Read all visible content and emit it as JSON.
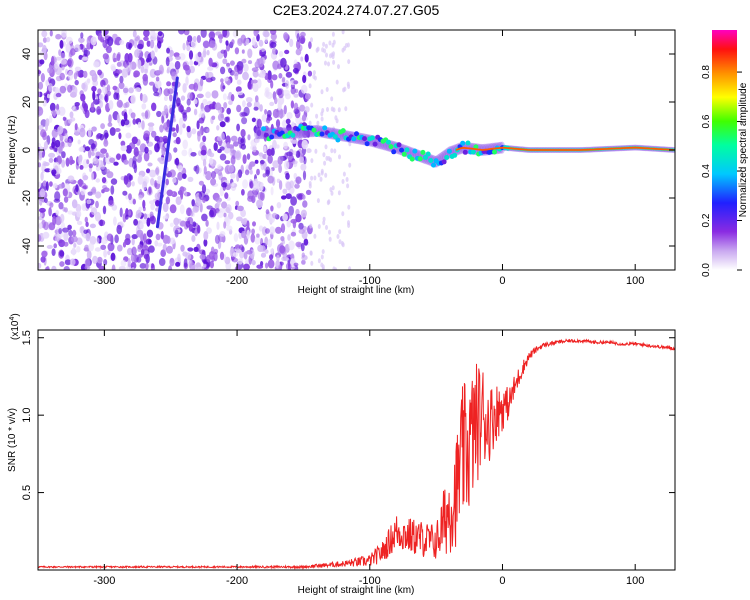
{
  "title": "C2E3.2024.274.07.27.G05",
  "chart_data": [
    {
      "type": "heatmap",
      "xlabel": "Height of straight line (km)",
      "ylabel": "Frequency (Hz)",
      "xlim": [
        -350,
        130
      ],
      "ylim": [
        -50,
        50
      ],
      "xticks": [
        -300,
        -200,
        -100,
        0,
        100
      ],
      "yticks": [
        -40,
        -20,
        0,
        20,
        40
      ],
      "colorbar": {
        "label": "Normalized spectral amplitude",
        "range": [
          0.0,
          0.97
        ],
        "ticks": [
          "0.0",
          "0.2",
          "0.4",
          "0.6",
          "0.8"
        ],
        "colormap": [
          "#ffffff",
          "#8a2be2",
          "#0000ff",
          "#00ffff",
          "#00ff00",
          "#ffff00",
          "#ff8000",
          "#ff0000",
          "#ff00ff"
        ]
      },
      "description_points": {
        "noise_region_x": [
          -350,
          -145
        ],
        "trace": [
          {
            "x": -180,
            "f": 7
          },
          {
            "x": -160,
            "f": 7
          },
          {
            "x": -140,
            "f": 8
          },
          {
            "x": -120,
            "f": 6
          },
          {
            "x": -100,
            "f": 4
          },
          {
            "x": -80,
            "f": 1
          },
          {
            "x": -60,
            "f": -3
          },
          {
            "x": -50,
            "f": -5
          },
          {
            "x": -40,
            "f": -1
          },
          {
            "x": -30,
            "f": 1
          },
          {
            "x": -15,
            "f": 0
          },
          {
            "x": 0,
            "f": 1
          },
          {
            "x": 20,
            "f": 0
          },
          {
            "x": 60,
            "f": 0
          },
          {
            "x": 100,
            "f": 1
          },
          {
            "x": 130,
            "f": 0
          }
        ],
        "streak": [
          {
            "x": -245,
            "f": 30
          },
          {
            "x": -260,
            "f": -32
          }
        ]
      }
    },
    {
      "type": "line",
      "xlabel": "Height of straight line (km)",
      "ylabel": "SNR (10 * v/v)",
      "multiplier": "(x10",
      "multiplier_exp": "4",
      "multiplier_close": ")",
      "xlim": [
        -350,
        130
      ],
      "ylim": [
        0,
        1.55
      ],
      "xticks": [
        -300,
        -200,
        -100,
        0,
        100
      ],
      "yticks": [
        "0.5",
        "1.0",
        "1.5"
      ],
      "color": "#ee2222",
      "series": [
        {
          "x": [
            -350,
            -300,
            -250,
            -200,
            -150,
            -120,
            -100,
            -90,
            -80,
            -70,
            -60,
            -50,
            -40,
            -35,
            -30,
            -25,
            -20,
            -15,
            -10,
            -5,
            0,
            5,
            10,
            15,
            20,
            25,
            30,
            40,
            50,
            60,
            70,
            80,
            90,
            100,
            110,
            120,
            130
          ],
          "y": [
            0.02,
            0.02,
            0.02,
            0.02,
            0.02,
            0.04,
            0.06,
            0.12,
            0.25,
            0.22,
            0.2,
            0.18,
            0.4,
            0.5,
            0.75,
            0.8,
            0.95,
            1.0,
            0.95,
            1.02,
            1.05,
            1.08,
            1.2,
            1.3,
            1.38,
            1.42,
            1.45,
            1.47,
            1.48,
            1.48,
            1.47,
            1.47,
            1.46,
            1.46,
            1.45,
            1.44,
            1.43
          ],
          "noise": [
            0.005,
            0.005,
            0.005,
            0.005,
            0.008,
            0.02,
            0.04,
            0.07,
            0.12,
            0.12,
            0.12,
            0.12,
            0.3,
            0.35,
            0.45,
            0.45,
            0.4,
            0.35,
            0.25,
            0.2,
            0.15,
            0.1,
            0.08,
            0.05,
            0.03,
            0.02,
            0.015,
            0.012,
            0.01,
            0.01,
            0.01,
            0.01,
            0.01,
            0.01,
            0.01,
            0.01,
            0.01
          ]
        }
      ]
    }
  ]
}
